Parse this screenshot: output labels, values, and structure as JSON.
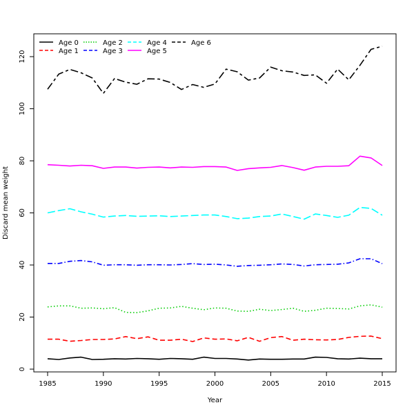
{
  "chart_data": {
    "type": "line",
    "xlabel": "Year",
    "ylabel": "Discard mean weight",
    "xlim": [
      1985,
      2015
    ],
    "ylim": [
      0,
      125
    ],
    "x_ticks": [
      1985,
      1990,
      1995,
      2000,
      2005,
      2010,
      2015
    ],
    "y_ticks": [
      0,
      20,
      40,
      60,
      80,
      100,
      120
    ],
    "legend_position": "top-left",
    "x": [
      1985,
      1986,
      1987,
      1988,
      1989,
      1990,
      1991,
      1992,
      1993,
      1994,
      1995,
      1996,
      1997,
      1998,
      1999,
      2000,
      2001,
      2002,
      2003,
      2004,
      2005,
      2006,
      2007,
      2008,
      2009,
      2010,
      2011,
      2012,
      2013,
      2014,
      2015
    ],
    "series": [
      {
        "name": "Age 0",
        "color": "#000000",
        "dash": "solid",
        "values": [
          4.0,
          3.7,
          4.3,
          4.6,
          3.7,
          3.8,
          4.0,
          3.9,
          4.1,
          4.0,
          3.8,
          4.1,
          4.0,
          3.8,
          4.6,
          4.1,
          4.1,
          3.9,
          3.5,
          3.9,
          3.8,
          3.8,
          3.9,
          3.9,
          4.6,
          4.5,
          4.0,
          3.9,
          4.2,
          4.0,
          4.0
        ]
      },
      {
        "name": "Age 1",
        "color": "#ff0000",
        "dash": "dashed",
        "values": [
          11.5,
          11.5,
          10.7,
          11.0,
          11.4,
          11.4,
          11.6,
          12.5,
          11.7,
          12.4,
          11.1,
          11.1,
          11.5,
          10.6,
          12.0,
          11.5,
          11.6,
          10.9,
          12.2,
          10.7,
          12.1,
          12.5,
          11.1,
          11.5,
          11.3,
          11.2,
          11.4,
          12.2,
          12.6,
          12.7,
          11.7
        ]
      },
      {
        "name": "Age 2",
        "color": "#00cc00",
        "dash": "dotted",
        "values": [
          23.9,
          24.3,
          24.3,
          23.4,
          23.5,
          23.2,
          23.6,
          21.8,
          21.7,
          22.4,
          23.4,
          23.5,
          24.1,
          23.4,
          22.8,
          23.5,
          23.4,
          22.3,
          22.2,
          23.0,
          22.5,
          22.9,
          23.4,
          22.2,
          22.6,
          23.4,
          23.3,
          23.1,
          24.3,
          24.7,
          23.8
        ]
      },
      {
        "name": "Age 3",
        "color": "#0000ff",
        "dash": "dashdot",
        "values": [
          40.6,
          40.6,
          41.4,
          41.7,
          41.2,
          39.9,
          40.1,
          40.1,
          39.9,
          40.1,
          40.1,
          40.0,
          40.2,
          40.5,
          40.2,
          40.3,
          40.0,
          39.5,
          39.8,
          39.9,
          40.1,
          40.4,
          40.2,
          39.6,
          40.1,
          40.2,
          40.3,
          40.8,
          42.4,
          42.4,
          40.5
        ]
      },
      {
        "name": "Age 4",
        "color": "#00ffff",
        "dash": "longdash",
        "values": [
          60.0,
          60.9,
          61.6,
          60.4,
          59.5,
          58.4,
          58.8,
          59.0,
          58.7,
          58.8,
          58.9,
          58.6,
          58.8,
          59.0,
          59.2,
          59.2,
          58.6,
          57.8,
          58.0,
          58.6,
          58.8,
          59.6,
          58.6,
          57.6,
          59.6,
          59.0,
          58.3,
          59.1,
          62.1,
          61.7,
          59.1
        ]
      },
      {
        "name": "Age 5",
        "color": "#ff00ff",
        "dash": "solid",
        "values": [
          78.5,
          78.3,
          78.0,
          78.3,
          78.1,
          77.1,
          77.6,
          77.6,
          77.2,
          77.5,
          77.6,
          77.3,
          77.6,
          77.5,
          77.8,
          77.8,
          77.6,
          76.3,
          77.0,
          77.3,
          77.5,
          78.2,
          77.4,
          76.4,
          77.6,
          77.9,
          77.9,
          78.1,
          81.8,
          81.1,
          78.2
        ]
      },
      {
        "name": "Age 6",
        "color": "#000000",
        "dash": "twodash",
        "values": [
          107.5,
          113.3,
          115.1,
          113.8,
          111.8,
          105.9,
          111.6,
          110.2,
          109.4,
          111.5,
          111.4,
          110.1,
          107.4,
          109.3,
          108.2,
          109.5,
          115.2,
          114.2,
          111.0,
          111.8,
          116.0,
          114.6,
          114.1,
          112.8,
          113.0,
          109.8,
          115.2,
          111.1,
          116.7,
          122.8,
          124.0
        ]
      }
    ]
  }
}
